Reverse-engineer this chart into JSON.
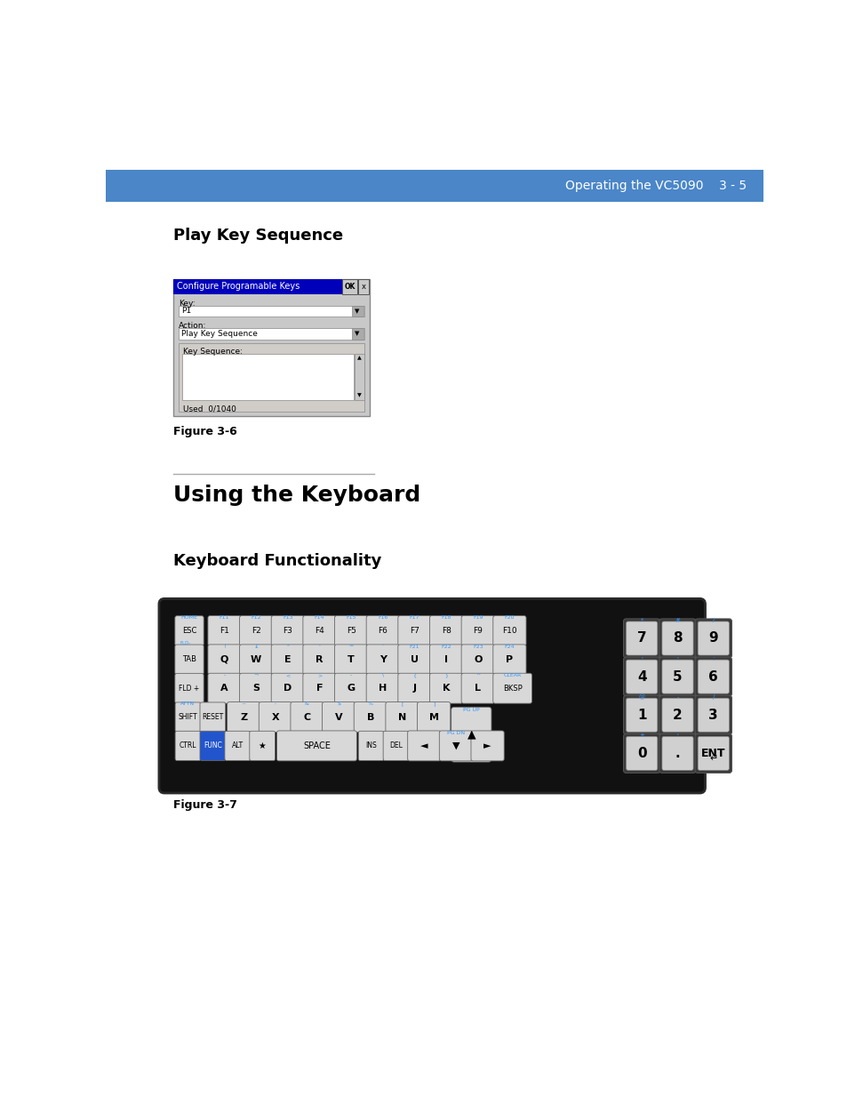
{
  "header_color": "#4a86c8",
  "header_text": "Operating the VC5090    3 - 5",
  "header_text_color": "#ffffff",
  "bg_color": "#ffffff",
  "title1": "Play Key Sequence",
  "title2": "Using the Keyboard",
  "subtitle1": "Keyboard Functionality",
  "fig3_label": "Figure 3-6",
  "fig7_label": "Figure 3-7",
  "dialog_title": "Configure Programable Keys",
  "dialog_title_bg": "#0000bb",
  "dialog_title_text": "#ffffff",
  "dialog_bg": "#c8c8c8",
  "dialog_key_label": "Key:",
  "dialog_key_value": "P1",
  "dialog_action_label": "Action:",
  "dialog_action_value": "Play Key Sequence",
  "dialog_seq_label": "Key Sequence:",
  "dialog_used_text": "Used  0/1040",
  "keyboard_bg": "#111111"
}
